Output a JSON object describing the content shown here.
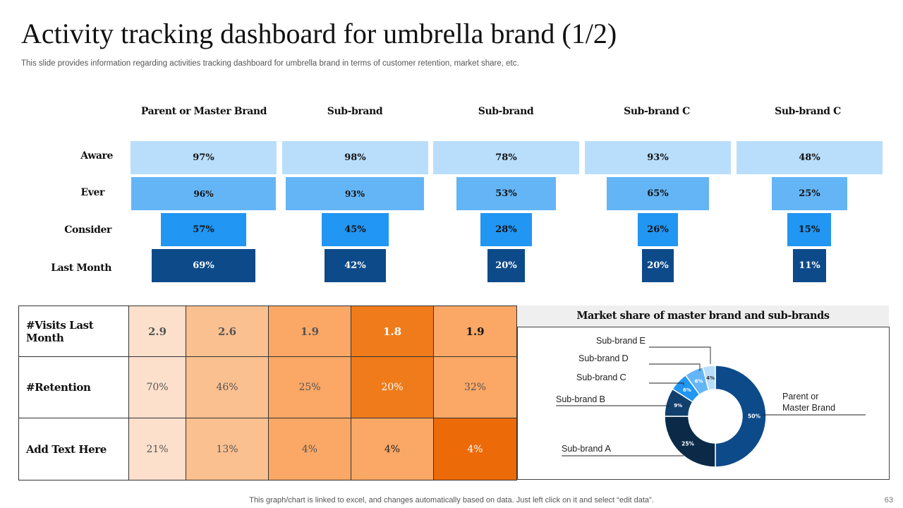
{
  "title": "Activity tracking dashboard for umbrella brand (1/2)",
  "subtitle": "This slide provides information regarding activities tracking dashboard for umbrella brand in terms of customer retention, market share, etc.",
  "funnel": {
    "columns": [
      "Parent or Master Brand",
      "Sub-brand",
      "Sub-brand",
      "Sub-brand C",
      "Sub-brand C"
    ],
    "stages": [
      "Aware",
      "Ever",
      "Consider",
      "Last Month"
    ],
    "values": [
      [
        "97%",
        "96%",
        "57%",
        "69%"
      ],
      [
        "98%",
        "93%",
        "45%",
        "42%"
      ],
      [
        "78%",
        "53%",
        "28%",
        "20%"
      ],
      [
        "93%",
        "65%",
        "26%",
        "20%"
      ],
      [
        "48%",
        "25%",
        "15%",
        "11%"
      ]
    ],
    "colors": [
      "#b9defb",
      "#64b5f6",
      "#2196f3",
      "#0d4a8a"
    ]
  },
  "metrics": {
    "rows": [
      {
        "label": "#Visits Last Month",
        "values": [
          "2.9",
          "2.6",
          "1.9",
          "1.8",
          "1.9"
        ]
      },
      {
        "label": "#Retention",
        "values": [
          "70%",
          "46%",
          "25%",
          "20%",
          "32%"
        ]
      },
      {
        "label": "Add Text Here",
        "values": [
          "21%",
          "13%",
          "4%",
          "4%",
          "4%"
        ]
      }
    ]
  },
  "chart_data": {
    "type": "pie",
    "title": "Market share of master brand and sub-brands",
    "categories": [
      "Parent or Master Brand",
      "Sub-brand A",
      "Sub-brand B",
      "Sub-brand C",
      "Sub-brand D",
      "Sub-brand E"
    ],
    "values": [
      50,
      25,
      9,
      6,
      6,
      4
    ],
    "value_labels": [
      "50%",
      "25%",
      "9%",
      "6%",
      "6%",
      "4%"
    ],
    "colors": [
      "#0d4a8a",
      "#0a2a48",
      "#12406e",
      "#2196f3",
      "#64b5f6",
      "#b9defb"
    ],
    "donut": true,
    "label_names": [
      "Sub-brand",
      "Sub-brand",
      "Sub-brand",
      "Sub-brand",
      "Parent or"
    ],
    "label_letters": [
      "E",
      "D",
      "C",
      "B",
      "A"
    ],
    "parent_label_line2": "Master Brand"
  },
  "footer": "This graph/chart is linked to excel, and changes automatically based on data. Just left click on it and select “edit data”.",
  "page_number": "63"
}
